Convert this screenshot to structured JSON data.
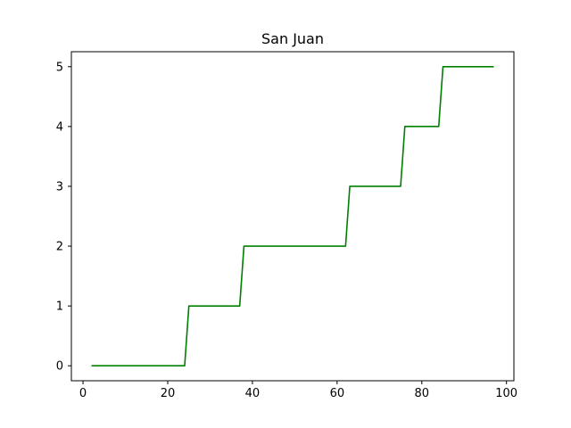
{
  "chart_data": {
    "type": "line",
    "title": "San Juan",
    "xlabel": "",
    "ylabel": "",
    "xlim": [
      -2.75,
      101.75
    ],
    "ylim": [
      -0.25,
      5.25
    ],
    "xticks": [
      0,
      20,
      40,
      60,
      80,
      100
    ],
    "yticks": [
      0,
      1,
      2,
      3,
      4,
      5
    ],
    "grid": false,
    "series": [
      {
        "color": "#008000",
        "x": [
          2,
          24,
          25,
          37,
          38,
          62,
          63,
          75,
          76,
          84,
          85,
          97
        ],
        "y": [
          0,
          0,
          1,
          1,
          2,
          2,
          3,
          3,
          4,
          4,
          5,
          5
        ]
      }
    ]
  }
}
